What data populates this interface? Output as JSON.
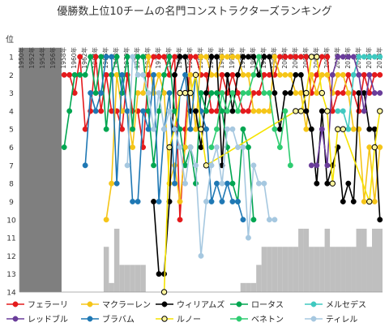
{
  "chart_data": {
    "type": "line",
    "title": "優勝数上位10チームの名門コンストラクターズランキング",
    "ylabel": "位",
    "ylim": [
      1,
      14
    ],
    "y_inverted": true,
    "grid": false,
    "legend_position": "bottom",
    "x_tick_labels": [
      "1950年",
      "1952年",
      "1954年",
      "1956年",
      "1958年",
      "1960年",
      "1962年",
      "1964年",
      "1966年",
      "1968年",
      "1970年",
      "1972年",
      "1974年",
      "1976年",
      "1978年",
      "1980年",
      "1982年",
      "1984年",
      "1986年",
      "1988年",
      "1990年",
      "1992年",
      "1994年",
      "1996年",
      "1998年",
      "2000年",
      "2002年",
      "2004年",
      "2006年",
      "2008年",
      "2010年",
      "2012年",
      "2014年",
      "2016年",
      "2018年"
    ],
    "y_tick_labels": [
      "1",
      "2",
      "3",
      "4",
      "5",
      "6",
      "7",
      "8",
      "9",
      "10",
      "11",
      "12",
      "13",
      "14"
    ],
    "x_range": [
      1950,
      2018
    ],
    "unranked_shading": {
      "color": "#7f7f7f",
      "from": 1950,
      "to": 1957,
      "note": "chart shows gray fill for seasons before the championship began"
    },
    "field_size_bars": {
      "color": "#bfbfbf",
      "values": [
        {
          "year": 1966,
          "rank": 11
        },
        {
          "year": 1967,
          "rank": 13
        },
        {
          "year": 1968,
          "rank": 10
        },
        {
          "year": 1969,
          "rank": 12
        },
        {
          "year": 1970,
          "rank": 12
        },
        {
          "year": 1971,
          "rank": 12
        },
        {
          "year": 1972,
          "rank": 12
        },
        {
          "year": 1973,
          "rank": 12
        },
        {
          "year": 1992,
          "rank": 13
        },
        {
          "year": 1993,
          "rank": 13
        },
        {
          "year": 1994,
          "rank": 13
        },
        {
          "year": 1995,
          "rank": 12
        },
        {
          "year": 1996,
          "rank": 11
        },
        {
          "year": 1997,
          "rank": 11
        },
        {
          "year": 1998,
          "rank": 11
        },
        {
          "year": 1999,
          "rank": 11
        },
        {
          "year": 2000,
          "rank": 11
        },
        {
          "year": 2001,
          "rank": 11
        },
        {
          "year": 2002,
          "rank": 11
        },
        {
          "year": 2003,
          "rank": 10
        },
        {
          "year": 2004,
          "rank": 10
        },
        {
          "year": 2005,
          "rank": 11
        },
        {
          "year": 2006,
          "rank": 11
        },
        {
          "year": 2007,
          "rank": 11
        },
        {
          "year": 2008,
          "rank": 10
        },
        {
          "year": 2009,
          "rank": 11
        },
        {
          "year": 2010,
          "rank": 11
        },
        {
          "year": 2011,
          "rank": 11
        },
        {
          "year": 2012,
          "rank": 11
        },
        {
          "year": 2013,
          "rank": 11
        },
        {
          "year": 2014,
          "rank": 10
        },
        {
          "year": 2015,
          "rank": 10
        },
        {
          "year": 2016,
          "rank": 11
        },
        {
          "year": 2017,
          "rank": 10
        },
        {
          "year": 2018,
          "rank": 10
        }
      ]
    },
    "series": [
      {
        "name": "フェラーリ",
        "color": "#e41a1c",
        "marker": "filled",
        "x": [
          1958,
          1959,
          1960,
          1961,
          1962,
          1963,
          1964,
          1965,
          1966,
          1967,
          1968,
          1969,
          1970,
          1971,
          1972,
          1973,
          1974,
          1975,
          1976,
          1977,
          1978,
          1979,
          1980,
          1981,
          1982,
          1983,
          1984,
          1985,
          1986,
          1987,
          1988,
          1989,
          1990,
          1991,
          1992,
          1993,
          1994,
          1995,
          1996,
          1997,
          1998,
          1999,
          2000,
          2001,
          2002,
          2003,
          2004,
          2005,
          2006,
          2007,
          2008,
          2009,
          2010,
          2011,
          2012,
          2013,
          2014,
          2015,
          2016,
          2017,
          2018
        ],
        "y": [
          2,
          2,
          3,
          1,
          5,
          4,
          1,
          4,
          2,
          4,
          4,
          5,
          2,
          4,
          4,
          6,
          2,
          1,
          1,
          1,
          2,
          1,
          10,
          5,
          1,
          1,
          2,
          2,
          4,
          4,
          2,
          3,
          2,
          3,
          4,
          4,
          3,
          3,
          2,
          2,
          2,
          1,
          1,
          1,
          1,
          1,
          1,
          3,
          2,
          1,
          1,
          4,
          3,
          3,
          2,
          3,
          4,
          2,
          3,
          2,
          2
        ]
      },
      {
        "name": "マクラーレン",
        "color": "#f5c518",
        "marker": "filled",
        "x": [
          1966,
          1967,
          1968,
          1969,
          1970,
          1971,
          1972,
          1973,
          1974,
          1975,
          1976,
          1977,
          1978,
          1979,
          1980,
          1981,
          1982,
          1983,
          1984,
          1985,
          1986,
          1987,
          1988,
          1989,
          1990,
          1991,
          1992,
          1993,
          1994,
          1995,
          1996,
          1997,
          1998,
          1999,
          2000,
          2001,
          2002,
          2003,
          2004,
          2005,
          2006,
          2007,
          2008,
          2009,
          2010,
          2011,
          2012,
          2013,
          2014,
          2015,
          2016,
          2017,
          2018
        ],
        "y": [
          10,
          8,
          2,
          4,
          4,
          6,
          3,
          3,
          1,
          3,
          2,
          3,
          8,
          7,
          9,
          6,
          2,
          5,
          1,
          1,
          2,
          2,
          1,
          1,
          1,
          1,
          2,
          2,
          4,
          4,
          4,
          4,
          1,
          2,
          2,
          2,
          3,
          3,
          5,
          2,
          3,
          2,
          2,
          3,
          2,
          2,
          3,
          5,
          5,
          9,
          6,
          9,
          6
        ]
      },
      {
        "name": "ウィリアムズ",
        "color": "#000000",
        "marker": "filled",
        "x": [
          1975,
          1976,
          1977,
          1978,
          1979,
          1980,
          1981,
          1982,
          1983,
          1984,
          1985,
          1986,
          1987,
          1988,
          1989,
          1990,
          1991,
          1992,
          1993,
          1994,
          1995,
          1996,
          1997,
          1998,
          1999,
          2000,
          2001,
          2002,
          2003,
          2004,
          2005,
          2006,
          2007,
          2008,
          2009,
          2010,
          2011,
          2012,
          2013,
          2014,
          2015,
          2016,
          2017,
          2018
        ],
        "y": [
          9,
          13,
          13,
          9,
          2,
          1,
          1,
          4,
          4,
          6,
          3,
          1,
          1,
          7,
          2,
          4,
          2,
          1,
          1,
          1,
          2,
          1,
          1,
          3,
          5,
          3,
          3,
          2,
          2,
          4,
          5,
          8,
          4,
          8,
          7,
          6,
          9,
          8,
          9,
          3,
          3,
          5,
          5,
          10
        ]
      },
      {
        "name": "ロータス",
        "color": "#00a651",
        "marker": "filled",
        "x": [
          1958,
          1959,
          1960,
          1961,
          1962,
          1963,
          1964,
          1965,
          1966,
          1967,
          1968,
          1969,
          1970,
          1971,
          1972,
          1973,
          1974,
          1975,
          1976,
          1977,
          1978,
          1979,
          1980,
          1981,
          1982,
          1983,
          1984,
          1985,
          1986,
          1987,
          1988,
          1989,
          1990,
          1991,
          1992,
          1993,
          1994
        ],
        "y": [
          6,
          4,
          2,
          2,
          2,
          1,
          3,
          1,
          5,
          2,
          1,
          3,
          1,
          5,
          1,
          1,
          4,
          7,
          4,
          2,
          1,
          4,
          5,
          7,
          6,
          8,
          3,
          4,
          3,
          3,
          4,
          6,
          8,
          9,
          5,
          6,
          10
        ]
      },
      {
        "name": "メルセデス",
        "color": "#40c9c0",
        "marker": "filled",
        "x": [
          2010,
          2011,
          2012,
          2013,
          2014,
          2015,
          2016,
          2017,
          2018
        ],
        "y": [
          4,
          4,
          5,
          2,
          1,
          1,
          1,
          1,
          1
        ]
      },
      {
        "name": "レッドブル",
        "color": "#6a3d9a",
        "marker": "filled",
        "x": [
          2005,
          2006,
          2007,
          2008,
          2009,
          2010,
          2011,
          2012,
          2013,
          2014,
          2015,
          2016,
          2017,
          2018
        ],
        "y": [
          7,
          7,
          5,
          7,
          2,
          1,
          1,
          1,
          1,
          2,
          4,
          2,
          3,
          3
        ]
      },
      {
        "name": "ブラバム",
        "color": "#1f78b4",
        "marker": "filled",
        "x": [
          1962,
          1963,
          1964,
          1965,
          1966,
          1967,
          1968,
          1969,
          1970,
          1971,
          1972,
          1973,
          1974,
          1975,
          1976,
          1977,
          1978,
          1979,
          1980,
          1981,
          1982,
          1983,
          1984,
          1985,
          1986,
          1987,
          1988,
          1989,
          1990,
          1991,
          1992
        ],
        "y": [
          7,
          3,
          4,
          3,
          1,
          1,
          8,
          2,
          4,
          9,
          9,
          4,
          5,
          2,
          9,
          5,
          3,
          8,
          3,
          2,
          5,
          2,
          4,
          5,
          9,
          8,
          9,
          8,
          9,
          9,
          10
        ]
      },
      {
        "name": "ルノー",
        "color": "#f5e300",
        "marker": "open",
        "x": [
          1977,
          1978,
          1979,
          1980,
          1981,
          1982,
          1983,
          1984,
          1985,
          2002,
          2003,
          2004,
          2005,
          2006,
          2007,
          2008,
          2009,
          2010,
          2011,
          2016,
          2017,
          2018
        ],
        "y": [
          14,
          6,
          5,
          3,
          3,
          3,
          2,
          5,
          7,
          4,
          4,
          3,
          1,
          1,
          3,
          4,
          8,
          5,
          5,
          9,
          6,
          4
        ]
      },
      {
        "name": "ベネトン",
        "color": "#2ecc71",
        "marker": "filled",
        "x": [
          1986,
          1987,
          1988,
          1989,
          1990,
          1991,
          1992,
          1993,
          1994,
          1995,
          1996,
          1997,
          1998,
          1999,
          2000,
          2001
        ],
        "y": [
          6,
          5,
          3,
          4,
          3,
          4,
          3,
          3,
          2,
          1,
          3,
          3,
          5,
          6,
          4,
          7
        ]
      },
      {
        "name": "ティレル",
        "color": "#a6c8e0",
        "marker": "filled",
        "x": [
          1970,
          1971,
          1972,
          1973,
          1974,
          1975,
          1976,
          1977,
          1978,
          1979,
          1980,
          1981,
          1982,
          1983,
          1984,
          1985,
          1986,
          1987,
          1988,
          1989,
          1990,
          1991,
          1992,
          1993,
          1994,
          1995,
          1996,
          1997,
          1998
        ],
        "y": [
          7,
          1,
          2,
          2,
          3,
          5,
          3,
          5,
          4,
          5,
          6,
          8,
          6,
          7,
          12,
          9,
          7,
          6,
          8,
          5,
          5,
          6,
          6,
          11,
          7,
          8,
          8,
          10,
          10
        ]
      }
    ]
  }
}
